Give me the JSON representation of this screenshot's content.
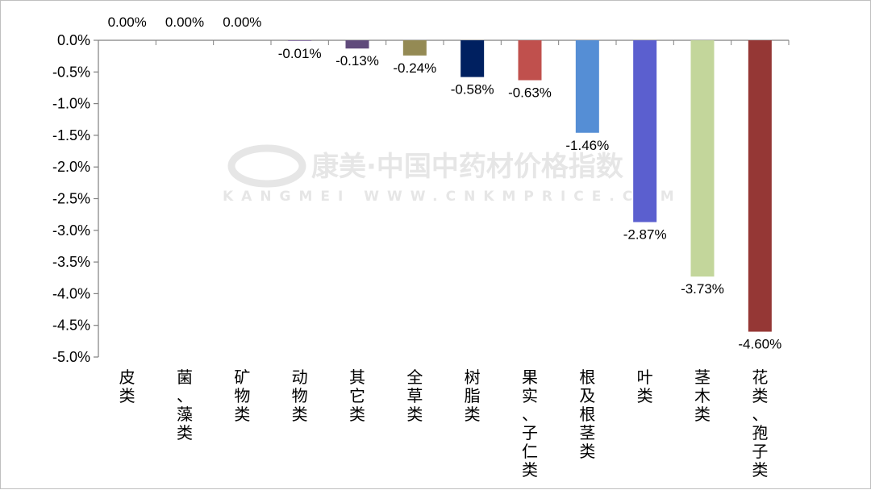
{
  "watermark": {
    "brand": "康美·中国中药材价格指数",
    "latin": "KANGMEI WWW.CNKMPRICE.COM"
  },
  "chart_data": {
    "type": "bar",
    "categories": [
      "皮类",
      "菌、藻类",
      "矿物类",
      "动物类",
      "其它类",
      "全草类",
      "树脂类",
      "果实、子仁类",
      "根及根茎类",
      "叶类",
      "茎木类",
      "花类、孢子类"
    ],
    "values": [
      0.0,
      0.0,
      0.0,
      -0.01,
      -0.13,
      -0.24,
      -0.58,
      -0.63,
      -1.46,
      -2.87,
      -3.73,
      -4.6
    ],
    "data_labels": [
      "0.00%",
      "0.00%",
      "0.00%",
      "-0.01%",
      "-0.13%",
      "-0.24%",
      "-0.58%",
      "-0.63%",
      "-1.46%",
      "-2.87%",
      "-3.73%",
      "-4.60%"
    ],
    "colors": [
      "#4f81bd",
      "#c0504d",
      "#9bbb59",
      "#8064a2",
      "#604a7b",
      "#948a54",
      "#002060",
      "#c0504d",
      "#558ed5",
      "#5b5fcf",
      "#c3d69b",
      "#953735"
    ],
    "y_ticks": [
      0.0,
      -0.5,
      -1.0,
      -1.5,
      -2.0,
      -2.5,
      -3.0,
      -3.5,
      -4.0,
      -4.5,
      -5.0
    ],
    "y_tick_labels": [
      "0.0%",
      "-0.5%",
      "-1.0%",
      "-1.5%",
      "-2.0%",
      "-2.5%",
      "-3.0%",
      "-3.5%",
      "-4.0%",
      "-4.5%",
      "-5.0%"
    ],
    "ylim": [
      -5.0,
      0.0
    ],
    "title": "",
    "xlabel": "",
    "ylabel": "",
    "grid": false,
    "legend": "none"
  }
}
